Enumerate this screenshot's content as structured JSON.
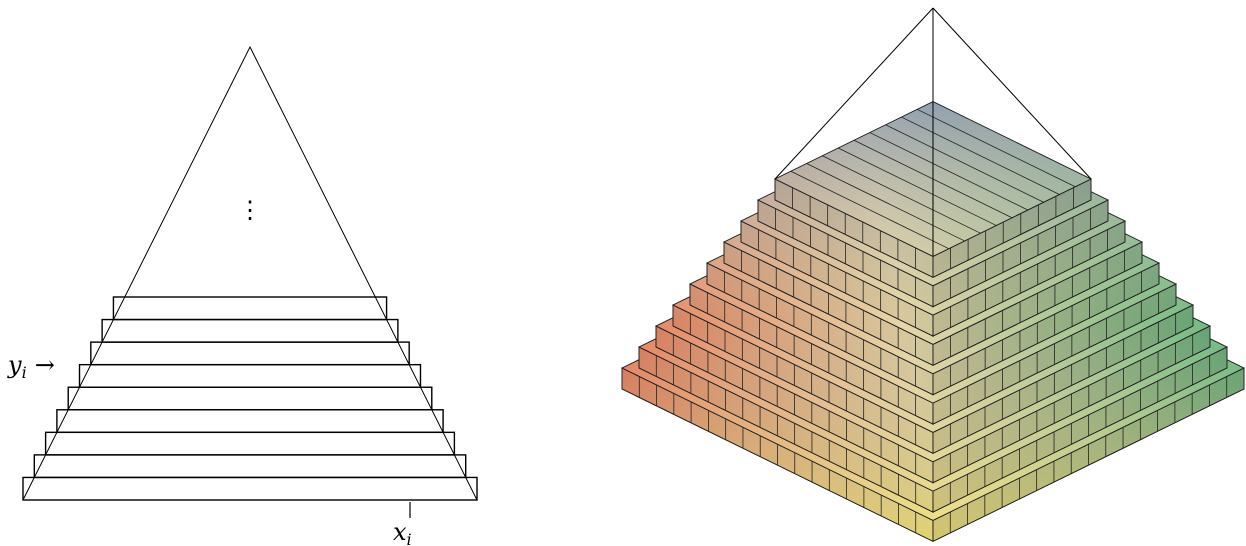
{
  "diagram": {
    "left": {
      "y_label": "y",
      "y_subscript": "i",
      "arrow": "→",
      "dots": "⋮",
      "x_label": "x",
      "x_subscript": "i"
    }
  }
}
